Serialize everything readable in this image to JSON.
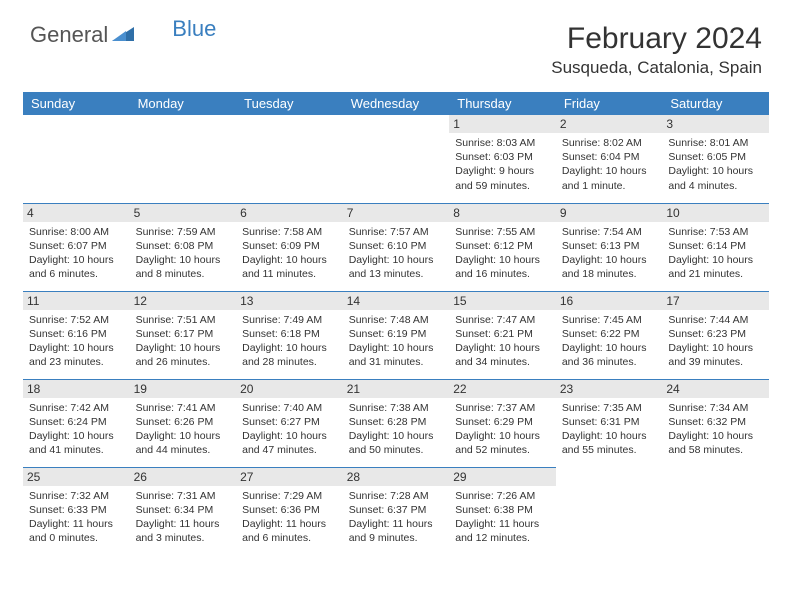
{
  "logo": {
    "text_general": "General",
    "text_blue": "Blue",
    "icon_color": "#3a7fbf"
  },
  "title": "February 2024",
  "location": "Susqueda, Catalonia, Spain",
  "colors": {
    "header_bg": "#3a7fbf",
    "header_text": "#ffffff",
    "daynum_bg": "#e8e8e8",
    "border": "#3a7fbf",
    "text": "#333333"
  },
  "weekdays": [
    "Sunday",
    "Monday",
    "Tuesday",
    "Wednesday",
    "Thursday",
    "Friday",
    "Saturday"
  ],
  "weeks": [
    [
      null,
      null,
      null,
      null,
      {
        "n": "1",
        "sunrise": "8:03 AM",
        "sunset": "6:03 PM",
        "daylight": "9 hours and 59 minutes."
      },
      {
        "n": "2",
        "sunrise": "8:02 AM",
        "sunset": "6:04 PM",
        "daylight": "10 hours and 1 minute."
      },
      {
        "n": "3",
        "sunrise": "8:01 AM",
        "sunset": "6:05 PM",
        "daylight": "10 hours and 4 minutes."
      }
    ],
    [
      {
        "n": "4",
        "sunrise": "8:00 AM",
        "sunset": "6:07 PM",
        "daylight": "10 hours and 6 minutes."
      },
      {
        "n": "5",
        "sunrise": "7:59 AM",
        "sunset": "6:08 PM",
        "daylight": "10 hours and 8 minutes."
      },
      {
        "n": "6",
        "sunrise": "7:58 AM",
        "sunset": "6:09 PM",
        "daylight": "10 hours and 11 minutes."
      },
      {
        "n": "7",
        "sunrise": "7:57 AM",
        "sunset": "6:10 PM",
        "daylight": "10 hours and 13 minutes."
      },
      {
        "n": "8",
        "sunrise": "7:55 AM",
        "sunset": "6:12 PM",
        "daylight": "10 hours and 16 minutes."
      },
      {
        "n": "9",
        "sunrise": "7:54 AM",
        "sunset": "6:13 PM",
        "daylight": "10 hours and 18 minutes."
      },
      {
        "n": "10",
        "sunrise": "7:53 AM",
        "sunset": "6:14 PM",
        "daylight": "10 hours and 21 minutes."
      }
    ],
    [
      {
        "n": "11",
        "sunrise": "7:52 AM",
        "sunset": "6:16 PM",
        "daylight": "10 hours and 23 minutes."
      },
      {
        "n": "12",
        "sunrise": "7:51 AM",
        "sunset": "6:17 PM",
        "daylight": "10 hours and 26 minutes."
      },
      {
        "n": "13",
        "sunrise": "7:49 AM",
        "sunset": "6:18 PM",
        "daylight": "10 hours and 28 minutes."
      },
      {
        "n": "14",
        "sunrise": "7:48 AM",
        "sunset": "6:19 PM",
        "daylight": "10 hours and 31 minutes."
      },
      {
        "n": "15",
        "sunrise": "7:47 AM",
        "sunset": "6:21 PM",
        "daylight": "10 hours and 34 minutes."
      },
      {
        "n": "16",
        "sunrise": "7:45 AM",
        "sunset": "6:22 PM",
        "daylight": "10 hours and 36 minutes."
      },
      {
        "n": "17",
        "sunrise": "7:44 AM",
        "sunset": "6:23 PM",
        "daylight": "10 hours and 39 minutes."
      }
    ],
    [
      {
        "n": "18",
        "sunrise": "7:42 AM",
        "sunset": "6:24 PM",
        "daylight": "10 hours and 41 minutes."
      },
      {
        "n": "19",
        "sunrise": "7:41 AM",
        "sunset": "6:26 PM",
        "daylight": "10 hours and 44 minutes."
      },
      {
        "n": "20",
        "sunrise": "7:40 AM",
        "sunset": "6:27 PM",
        "daylight": "10 hours and 47 minutes."
      },
      {
        "n": "21",
        "sunrise": "7:38 AM",
        "sunset": "6:28 PM",
        "daylight": "10 hours and 50 minutes."
      },
      {
        "n": "22",
        "sunrise": "7:37 AM",
        "sunset": "6:29 PM",
        "daylight": "10 hours and 52 minutes."
      },
      {
        "n": "23",
        "sunrise": "7:35 AM",
        "sunset": "6:31 PM",
        "daylight": "10 hours and 55 minutes."
      },
      {
        "n": "24",
        "sunrise": "7:34 AM",
        "sunset": "6:32 PM",
        "daylight": "10 hours and 58 minutes."
      }
    ],
    [
      {
        "n": "25",
        "sunrise": "7:32 AM",
        "sunset": "6:33 PM",
        "daylight": "11 hours and 0 minutes."
      },
      {
        "n": "26",
        "sunrise": "7:31 AM",
        "sunset": "6:34 PM",
        "daylight": "11 hours and 3 minutes."
      },
      {
        "n": "27",
        "sunrise": "7:29 AM",
        "sunset": "6:36 PM",
        "daylight": "11 hours and 6 minutes."
      },
      {
        "n": "28",
        "sunrise": "7:28 AM",
        "sunset": "6:37 PM",
        "daylight": "11 hours and 9 minutes."
      },
      {
        "n": "29",
        "sunrise": "7:26 AM",
        "sunset": "6:38 PM",
        "daylight": "11 hours and 12 minutes."
      },
      null,
      null
    ]
  ],
  "labels": {
    "sunrise": "Sunrise:",
    "sunset": "Sunset:",
    "daylight": "Daylight:"
  }
}
